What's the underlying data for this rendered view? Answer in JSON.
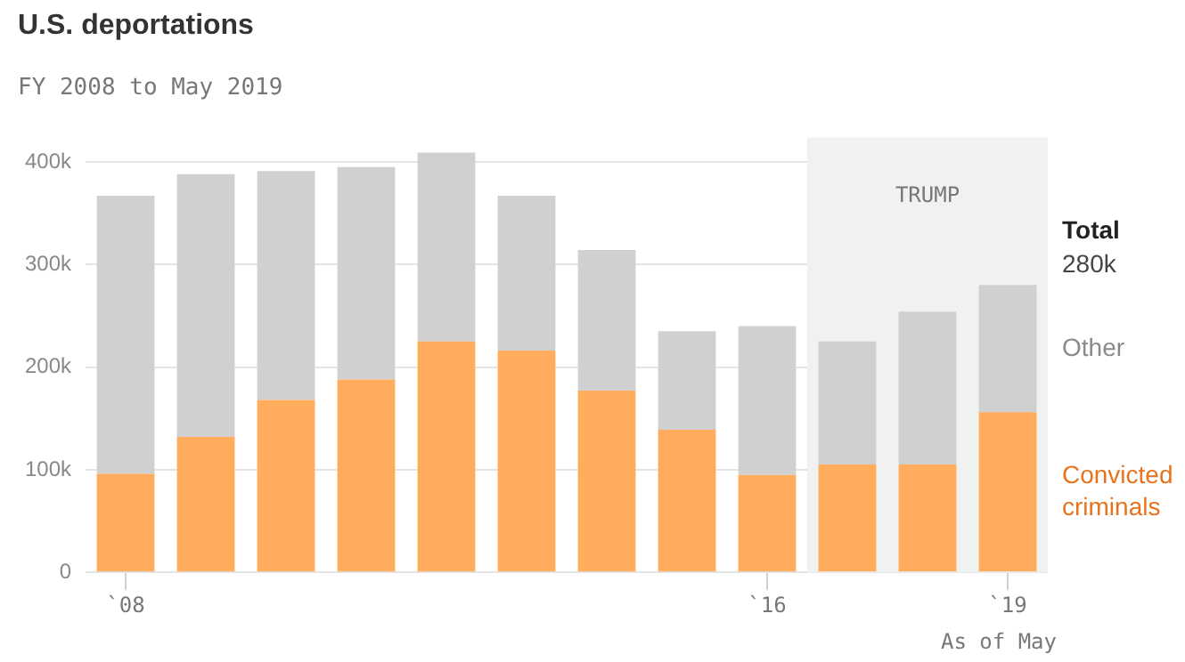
{
  "chart_data": {
    "type": "bar",
    "title": "U.S. deportations",
    "subtitle": "FY 2008 to May 2019",
    "stacked": true,
    "categories": [
      "`08",
      null,
      null,
      null,
      null,
      null,
      null,
      null,
      "`16",
      null,
      null,
      "`19"
    ],
    "ylim": [
      0,
      410000
    ],
    "yticks": [
      {
        "value": 0,
        "label": "0"
      },
      {
        "value": 100000,
        "label": "100k"
      },
      {
        "value": 200000,
        "label": "200k"
      },
      {
        "value": 300000,
        "label": "300k"
      },
      {
        "value": 400000,
        "label": "400k"
      }
    ],
    "grid": "y",
    "legend": false,
    "series": [
      {
        "name": "Convicted criminals",
        "color": "#ffad5c",
        "values": [
          96000,
          132000,
          168000,
          188000,
          225000,
          216000,
          177000,
          139000,
          95000,
          105000,
          105000,
          156000
        ]
      },
      {
        "name": "Other",
        "color": "#d0d0d0",
        "values": [
          271000,
          256000,
          223000,
          207000,
          184000,
          151000,
          137000,
          96000,
          145000,
          120000,
          149000,
          124000
        ]
      }
    ],
    "bands": [
      {
        "axis": "x",
        "from": "`16",
        "to": "`19",
        "label": "TRUMP",
        "color": "#f0f1f1"
      }
    ],
    "annotations": [
      "Total",
      "280k",
      "As of May"
    ]
  }
}
